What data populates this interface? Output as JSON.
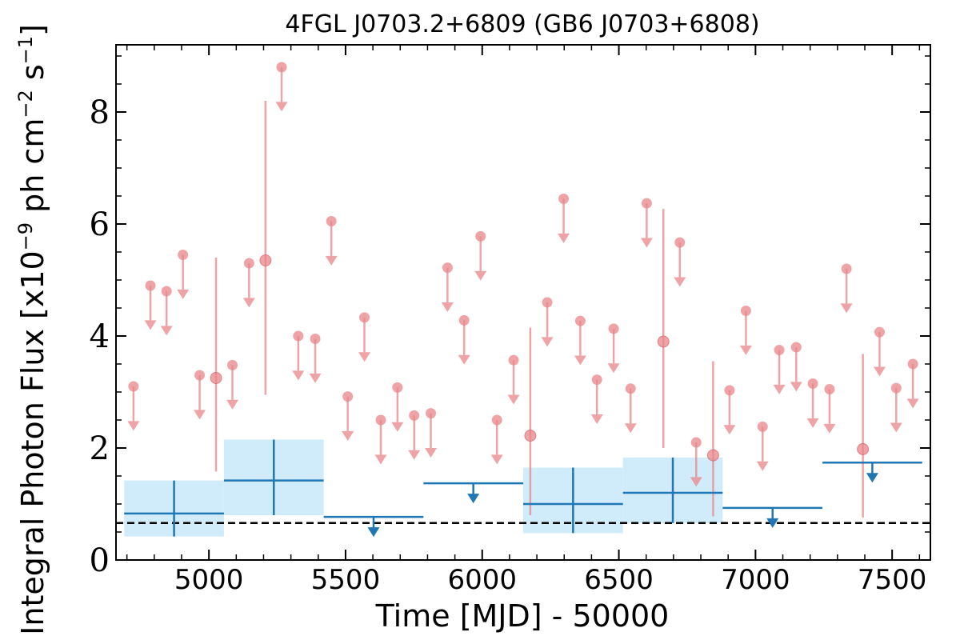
{
  "chart_data": {
    "type": "scatter",
    "title": "4FGL J0703.2+6809 (GB6 J0703+6808)",
    "xlabel": "Time [MJD] - 50000",
    "ylabel": "Integral Photon Flux [x10^-9 ph cm^-2 s^-1]",
    "ylabel_parts": {
      "prefix": "Integral Photon Flux [x10",
      "exp1": "−9",
      "mid": " ph cm",
      "exp2": "−2",
      "mid2": " s",
      "exp3": "−1",
      "suffix": "]"
    },
    "xlim": [
      4660,
      7640
    ],
    "ylim": [
      0,
      9.2
    ],
    "xticks": [
      5000,
      5500,
      6000,
      6500,
      7000,
      7500
    ],
    "yticks": [
      0,
      2,
      4,
      6,
      8
    ],
    "grid": false,
    "colors": {
      "monthly": "#e8858a",
      "yearly": "#1f77b4",
      "band": "#d0ecfb",
      "reference": "#000000"
    },
    "reference_line_y": 0.66,
    "series": [
      {
        "kind": "monthly_upper_limits",
        "points": [
          {
            "x": 4724,
            "y": 3.1
          },
          {
            "x": 4786,
            "y": 4.9
          },
          {
            "x": 4845,
            "y": 4.8
          },
          {
            "x": 4905,
            "y": 5.45
          },
          {
            "x": 4966,
            "y": 3.3
          },
          {
            "x": 5086,
            "y": 3.48
          },
          {
            "x": 5147,
            "y": 5.3
          },
          {
            "x": 5266,
            "y": 8.8
          },
          {
            "x": 5327,
            "y": 4.0
          },
          {
            "x": 5389,
            "y": 3.95
          },
          {
            "x": 5448,
            "y": 6.05
          },
          {
            "x": 5508,
            "y": 2.92
          },
          {
            "x": 5569,
            "y": 4.33
          },
          {
            "x": 5629,
            "y": 2.5
          },
          {
            "x": 5690,
            "y": 3.08
          },
          {
            "x": 5751,
            "y": 2.58
          },
          {
            "x": 5812,
            "y": 2.62
          },
          {
            "x": 5873,
            "y": 5.22
          },
          {
            "x": 5934,
            "y": 4.28
          },
          {
            "x": 5994,
            "y": 5.78
          },
          {
            "x": 6054,
            "y": 2.5
          },
          {
            "x": 6115,
            "y": 3.57
          },
          {
            "x": 6238,
            "y": 4.6
          },
          {
            "x": 6298,
            "y": 6.45
          },
          {
            "x": 6359,
            "y": 4.27
          },
          {
            "x": 6420,
            "y": 3.22
          },
          {
            "x": 6481,
            "y": 4.13
          },
          {
            "x": 6543,
            "y": 3.06
          },
          {
            "x": 6602,
            "y": 6.37
          },
          {
            "x": 6723,
            "y": 5.67
          },
          {
            "x": 6783,
            "y": 2.1
          },
          {
            "x": 6905,
            "y": 3.03
          },
          {
            "x": 6965,
            "y": 4.45
          },
          {
            "x": 7026,
            "y": 2.38
          },
          {
            "x": 7087,
            "y": 3.75
          },
          {
            "x": 7149,
            "y": 3.8
          },
          {
            "x": 7210,
            "y": 3.15
          },
          {
            "x": 7271,
            "y": 3.05
          },
          {
            "x": 7333,
            "y": 5.2
          },
          {
            "x": 7454,
            "y": 4.07
          },
          {
            "x": 7515,
            "y": 3.07
          },
          {
            "x": 7576,
            "y": 3.5
          }
        ]
      },
      {
        "kind": "monthly_detections",
        "points": [
          {
            "x": 5026,
            "y": 3.25,
            "ylo": 1.58,
            "yhi": 5.4
          },
          {
            "x": 5207,
            "y": 5.35,
            "ylo": 2.95,
            "yhi": 8.2
          },
          {
            "x": 6176,
            "y": 2.22,
            "ylo": 0.8,
            "yhi": 4.15
          },
          {
            "x": 6663,
            "y": 3.9,
            "ylo": 2.0,
            "yhi": 6.27
          },
          {
            "x": 6845,
            "y": 1.87,
            "ylo": 0.78,
            "yhi": 3.55
          },
          {
            "x": 7393,
            "y": 1.98,
            "ylo": 0.76,
            "yhi": 3.68
          }
        ]
      },
      {
        "kind": "yearly_detections",
        "points": [
          {
            "x0": 4690,
            "x1": 5055,
            "y": 0.83,
            "ylo": 0.42,
            "yhi": 1.42
          },
          {
            "x0": 5055,
            "x1": 5420,
            "y": 1.42,
            "ylo": 0.8,
            "yhi": 2.15
          },
          {
            "x0": 6150,
            "x1": 6515,
            "y": 1.0,
            "ylo": 0.48,
            "yhi": 1.65
          },
          {
            "x0": 6515,
            "x1": 6880,
            "y": 1.2,
            "ylo": 0.66,
            "yhi": 1.83
          }
        ]
      },
      {
        "kind": "yearly_upper_limits",
        "points": [
          {
            "x0": 5420,
            "x1": 5785,
            "y": 0.77
          },
          {
            "x0": 5785,
            "x1": 6150,
            "y": 1.37
          },
          {
            "x0": 6880,
            "x1": 7245,
            "y": 0.93
          },
          {
            "x0": 7245,
            "x1": 7610,
            "y": 1.74
          }
        ]
      }
    ]
  }
}
